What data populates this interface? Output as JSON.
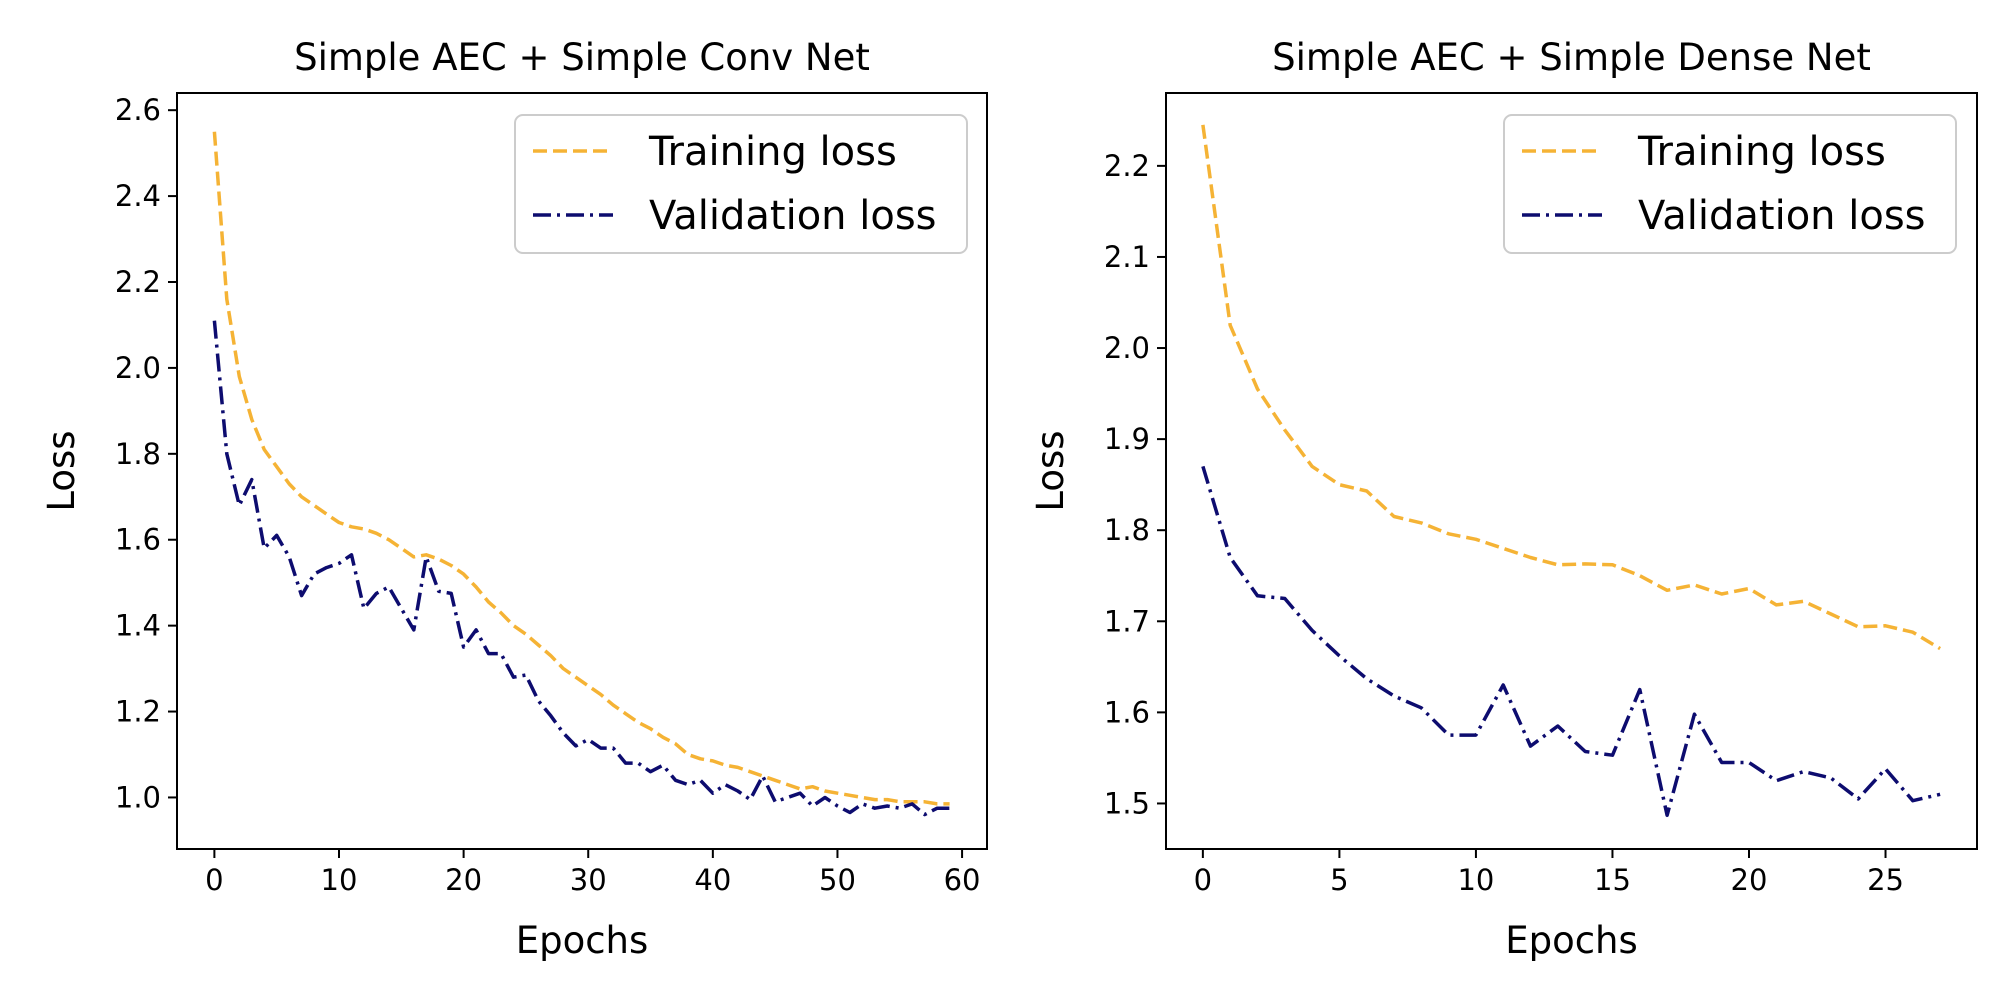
{
  "chart_data": [
    {
      "type": "line",
      "title": "Simple AEC + Simple Conv Net",
      "xlabel": "Epochs",
      "ylabel": "Loss",
      "xlim": [
        -3,
        62
      ],
      "ylim": [
        0.88,
        2.64
      ],
      "xticks": [
        0,
        10,
        20,
        30,
        40,
        50,
        60
      ],
      "yticks": [
        1.0,
        1.2,
        1.4,
        1.6,
        1.8,
        2.0,
        2.2,
        2.4,
        2.6
      ],
      "ytick_decimals": 1,
      "legend_position": "top-right",
      "grid": false,
      "series": [
        {
          "name": "Training loss",
          "color": "#F5B335",
          "style": "dashed",
          "x": [
            0,
            1,
            2,
            3,
            4,
            5,
            6,
            7,
            8,
            9,
            10,
            11,
            12,
            13,
            14,
            15,
            16,
            17,
            18,
            19,
            20,
            21,
            22,
            23,
            24,
            25,
            26,
            27,
            28,
            29,
            30,
            31,
            32,
            33,
            34,
            35,
            36,
            37,
            38,
            39,
            40,
            41,
            42,
            43,
            44,
            45,
            46,
            47,
            48,
            49,
            50,
            51,
            52,
            53,
            54,
            55,
            56,
            57,
            58,
            59
          ],
          "values": [
            2.55,
            2.16,
            1.98,
            1.88,
            1.81,
            1.77,
            1.73,
            1.7,
            1.68,
            1.66,
            1.64,
            1.63,
            1.625,
            1.615,
            1.6,
            1.58,
            1.56,
            1.565,
            1.555,
            1.54,
            1.52,
            1.49,
            1.455,
            1.43,
            1.4,
            1.38,
            1.355,
            1.33,
            1.3,
            1.28,
            1.26,
            1.24,
            1.215,
            1.195,
            1.175,
            1.16,
            1.14,
            1.125,
            1.1,
            1.09,
            1.085,
            1.075,
            1.07,
            1.06,
            1.05,
            1.04,
            1.03,
            1.02,
            1.025,
            1.015,
            1.01,
            1.005,
            1.0,
            0.995,
            0.995,
            0.99,
            0.99,
            0.99,
            0.985,
            0.985
          ]
        },
        {
          "name": "Validation loss",
          "color": "#0D0C6F",
          "style": "dashdot",
          "x": [
            0,
            1,
            2,
            3,
            4,
            5,
            6,
            7,
            8,
            9,
            10,
            11,
            12,
            13,
            14,
            15,
            16,
            17,
            18,
            19,
            20,
            21,
            22,
            23,
            24,
            25,
            26,
            27,
            28,
            29,
            30,
            31,
            32,
            33,
            34,
            35,
            36,
            37,
            38,
            39,
            40,
            41,
            42,
            43,
            44,
            45,
            46,
            47,
            48,
            49,
            50,
            51,
            52,
            53,
            54,
            55,
            56,
            57,
            58,
            59
          ],
          "values": [
            2.11,
            1.8,
            1.68,
            1.74,
            1.58,
            1.61,
            1.56,
            1.47,
            1.52,
            1.535,
            1.545,
            1.565,
            1.44,
            1.475,
            1.49,
            1.44,
            1.39,
            1.56,
            1.48,
            1.475,
            1.35,
            1.39,
            1.335,
            1.335,
            1.28,
            1.285,
            1.225,
            1.19,
            1.15,
            1.12,
            1.135,
            1.115,
            1.115,
            1.08,
            1.08,
            1.06,
            1.075,
            1.04,
            1.03,
            1.04,
            1.01,
            1.03,
            1.015,
            0.995,
            1.05,
            0.99,
            1.0,
            1.01,
            0.98,
            1.0,
            0.98,
            0.965,
            0.985,
            0.975,
            0.98,
            0.975,
            0.985,
            0.96,
            0.975,
            0.975
          ]
        }
      ]
    },
    {
      "type": "line",
      "title": "Simple AEC + Simple Dense Net",
      "xlabel": "Epochs",
      "ylabel": "Loss",
      "xlim": [
        -1.35,
        28.35
      ],
      "ylim": [
        1.45,
        2.28
      ],
      "xticks": [
        0,
        5,
        10,
        15,
        20,
        25
      ],
      "yticks": [
        1.5,
        1.6,
        1.7,
        1.8,
        1.9,
        2.0,
        2.1,
        2.2
      ],
      "ytick_decimals": 1,
      "legend_position": "top-right",
      "grid": false,
      "series": [
        {
          "name": "Training loss",
          "color": "#F5B335",
          "style": "dashed",
          "x": [
            0,
            1,
            2,
            3,
            4,
            5,
            6,
            7,
            8,
            9,
            10,
            11,
            12,
            13,
            14,
            15,
            16,
            17,
            18,
            19,
            20,
            21,
            22,
            23,
            24,
            25,
            26,
            27
          ],
          "values": [
            2.245,
            2.025,
            1.955,
            1.91,
            1.87,
            1.85,
            1.843,
            1.815,
            1.808,
            1.796,
            1.79,
            1.78,
            1.77,
            1.762,
            1.763,
            1.762,
            1.75,
            1.734,
            1.74,
            1.73,
            1.736,
            1.718,
            1.722,
            1.708,
            1.694,
            1.695,
            1.688,
            1.67
          ]
        },
        {
          "name": "Validation loss",
          "color": "#0D0C6F",
          "style": "dashdot",
          "x": [
            0,
            1,
            2,
            3,
            4,
            5,
            6,
            7,
            8,
            9,
            10,
            11,
            12,
            13,
            14,
            15,
            16,
            17,
            18,
            19,
            20,
            21,
            22,
            23,
            24,
            25,
            26,
            27
          ],
          "values": [
            1.87,
            1.77,
            1.728,
            1.725,
            1.69,
            1.662,
            1.637,
            1.618,
            1.605,
            1.575,
            1.575,
            1.63,
            1.563,
            1.585,
            1.557,
            1.553,
            1.625,
            1.487,
            1.598,
            1.545,
            1.545,
            1.525,
            1.535,
            1.528,
            1.505,
            1.538,
            1.503,
            1.51
          ]
        }
      ]
    }
  ]
}
